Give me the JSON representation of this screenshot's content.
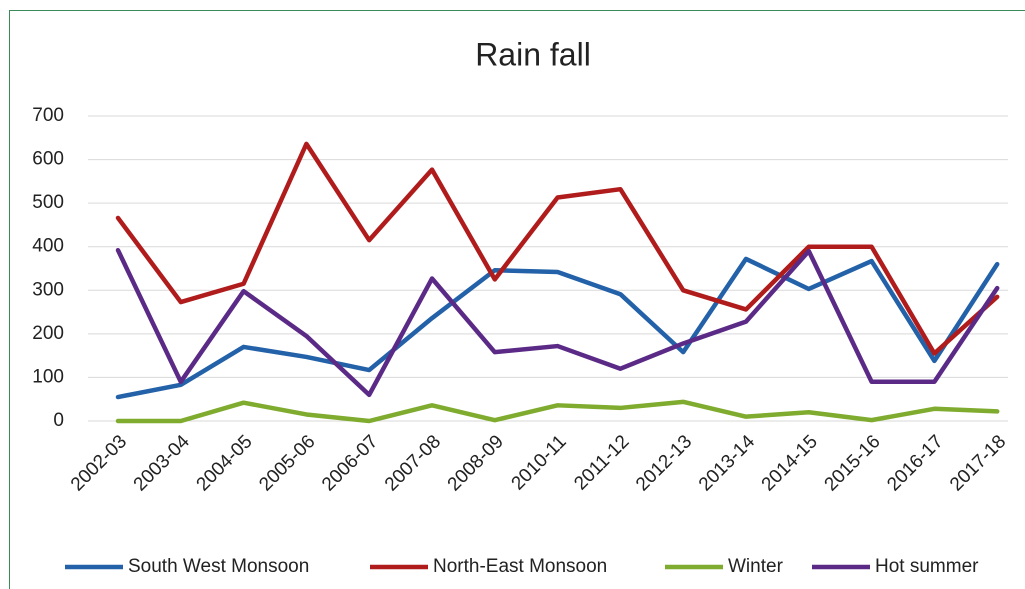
{
  "chart_data": {
    "type": "line",
    "title": "Rain fall",
    "categories": [
      "2002-03",
      "2003-04",
      "2004-05",
      "2005-06",
      "2006-07",
      "2007-08",
      "2008-09",
      "2010-11",
      "2011-12",
      "2012-13",
      "2013-14",
      "2014-15",
      "2015-16",
      "2016-17",
      "2017-18"
    ],
    "series": [
      {
        "name": "South West Monsoon",
        "color": "#2361a8",
        "values": [
          55,
          83,
          170,
          147,
          117,
          236,
          346,
          342,
          291,
          158,
          372,
          303,
          367,
          138,
          360
        ]
      },
      {
        "name": "North-East Monsoon",
        "color": "#b01c1c",
        "values": [
          466,
          273,
          315,
          636,
          415,
          577,
          325,
          513,
          532,
          300,
          256,
          400,
          400,
          155,
          285
        ]
      },
      {
        "name": "Winter",
        "color": "#7fab2e",
        "values": [
          0,
          0,
          42,
          15,
          0,
          36,
          2,
          36,
          30,
          44,
          10,
          20,
          2,
          28,
          22
        ]
      },
      {
        "name": "Hot summer",
        "color": "#5b2a86",
        "values": [
          392,
          90,
          298,
          195,
          60,
          327,
          158,
          172,
          120,
          178,
          228,
          390,
          90,
          90,
          305
        ]
      }
    ],
    "ylim": [
      0,
      700
    ],
    "yticks": [
      0,
      100,
      200,
      300,
      400,
      500,
      600,
      700
    ],
    "grid": true,
    "legend": "bottom"
  }
}
